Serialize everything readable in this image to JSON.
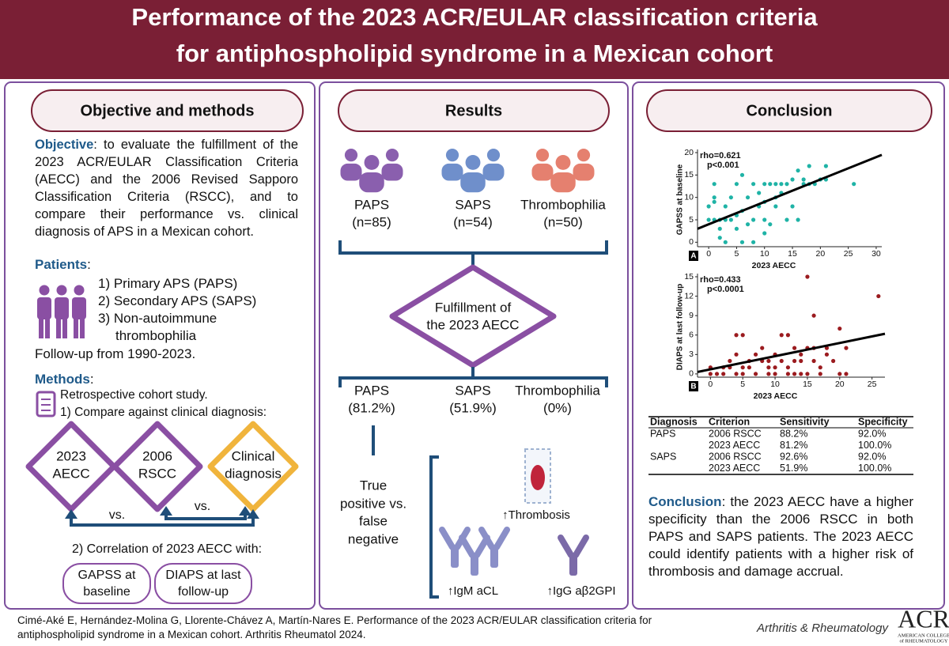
{
  "header": {
    "title": [
      "Performance of the 2023 ACR/EULAR classification criteria",
      "for antiphospholipid syndrome in a Mexican cohort"
    ]
  },
  "objective_panel": {
    "heading": "Objective and methods",
    "objective_label": "Objective",
    "objective_text": ": to evaluate the fulfillment of the 2023 ACR/EULAR Classification Criteria (AECC) and the 2006 Revised Sapporo Classification Criteria (RSCC), and to compare their performance vs. clinical diagnosis of APS in a Mexican cohort.",
    "patients_label": "Patients",
    "patients_colon": ":",
    "patients": [
      "1) Primary APS (PAPS)",
      "2) Secondary APS (SAPS)",
      "3) Non-autoimmune thrombophilia"
    ],
    "follow_up": "Follow-up from 1990-2023.",
    "methods_label": "Methods",
    "methods_colon": ":",
    "methods": [
      "Retrospective cohort study.",
      "1) Compare against clinical diagnosis:"
    ],
    "diamonds": [
      [
        "2023",
        "AECC"
      ],
      [
        "2006",
        "RSCC"
      ],
      [
        "Clinical",
        "diagnosis"
      ]
    ],
    "vs": [
      "vs.",
      "vs."
    ],
    "correlation": "2) Correlation of 2023 AECC with:",
    "scores": [
      [
        "GAPSS at",
        "baseline"
      ],
      [
        "DIAPS at last",
        "follow-up"
      ]
    ]
  },
  "results_panel": {
    "heading": "Results",
    "groups": [
      {
        "name": "PAPS",
        "n": "(n=85)"
      },
      {
        "name": "SAPS",
        "n": "(n=54)"
      },
      {
        "name": "Thrombophilia",
        "n": "(n=50)"
      }
    ],
    "decision": [
      "Fulfillment of",
      "the 2023 AECC"
    ],
    "outcomes": [
      {
        "name": "PAPS",
        "value": "(81.2%)"
      },
      {
        "name": "SAPS",
        "value": "(51.9%)"
      },
      {
        "name": "Thrombophilia",
        "value": "(0%)"
      }
    ],
    "comparison": [
      "True",
      "positive vs.",
      "false",
      "negative"
    ],
    "findings": [
      "↑Thrombosis",
      "↑IgM aCL",
      "↑IgG aβ2GPI"
    ]
  },
  "conclusion_panel": {
    "heading": "Conclusion",
    "table": {
      "header": [
        "Diagnosis",
        "Criterion",
        "Sensitivity",
        "Specificity"
      ],
      "rows": [
        [
          "PAPS",
          "2006 RSCC",
          "88.2%",
          "92.0%"
        ],
        [
          "",
          "2023 AECC",
          "81.2%",
          "100.0%"
        ],
        [
          "SAPS",
          "2006 RSCC",
          "92.6%",
          "92.0%"
        ],
        [
          "",
          "2023 AECC",
          "51.9%",
          "100.0%"
        ]
      ]
    },
    "conclusion_label": "Conclusion",
    "conclusion_text": ": the 2023 AECC have a higher specificity than the 2006 RSCC in both PAPS and SAPS patients. The 2023 AECC could identify patients with a higher risk of thrombosis and damage accrual."
  },
  "charts": [
    {
      "type": "scatter",
      "panel": "A",
      "annotations": [
        "rho=0.621",
        "p<0.001"
      ],
      "x_label": "2023 AECC",
      "y_label": "GAPSS at baseline",
      "color": "#1fb3a6",
      "xlim": [
        -2,
        31
      ],
      "ylim": [
        -1,
        20
      ],
      "xticks": [
        0,
        5,
        10,
        15,
        20,
        25,
        30
      ],
      "yticks": [
        0,
        5,
        10,
        15,
        20
      ],
      "x": [
        0,
        0,
        1,
        1,
        1,
        1,
        2,
        2,
        2,
        3,
        3,
        3,
        4,
        4,
        5,
        5,
        5,
        6,
        6,
        6,
        7,
        7,
        8,
        8,
        8,
        9,
        9,
        10,
        10,
        10,
        10,
        11,
        11,
        12,
        12,
        12,
        13,
        13,
        14,
        14,
        15,
        15,
        16,
        16,
        17,
        17,
        18,
        18,
        19,
        20,
        21,
        21,
        26
      ],
      "values": [
        5,
        8,
        5,
        13,
        10,
        9,
        3,
        1,
        5,
        0,
        5,
        8,
        5,
        10,
        3,
        6,
        13,
        0,
        7,
        15,
        4,
        10,
        0,
        5,
        13,
        8,
        11,
        2,
        5,
        9,
        13,
        4,
        13,
        8,
        10,
        13,
        13,
        11,
        5,
        13,
        8,
        14,
        5,
        16,
        14,
        13,
        17,
        13,
        13,
        14,
        14,
        17,
        13
      ],
      "fit": {
        "x": [
          -2,
          31
        ],
        "y": [
          3,
          19.5
        ]
      }
    },
    {
      "type": "scatter",
      "panel": "B",
      "annotations": [
        "rho=0.433",
        "p<0.0001"
      ],
      "x_label": "2023 AECC",
      "y_label": "DIAPS at last follow-up",
      "color": "#9b1b1f",
      "xlim": [
        -2,
        27
      ],
      "ylim": [
        -0.5,
        15
      ],
      "xticks": [
        0,
        5,
        10,
        15,
        20,
        25
      ],
      "yticks": [
        0,
        3,
        6,
        9,
        12,
        15
      ],
      "x": [
        0,
        0,
        1,
        2,
        2,
        3,
        3,
        4,
        4,
        4,
        5,
        5,
        5,
        6,
        6,
        7,
        7,
        8,
        8,
        9,
        9,
        9,
        10,
        10,
        10,
        11,
        11,
        12,
        12,
        12,
        13,
        13,
        13,
        14,
        14,
        14,
        15,
        15,
        15,
        16,
        16,
        16,
        17,
        17,
        18,
        18,
        19,
        20,
        20,
        21,
        21,
        26
      ],
      "values": [
        0,
        1,
        0,
        0,
        1,
        1,
        2,
        0,
        3,
        6,
        1,
        6,
        0,
        2,
        1,
        0,
        3,
        2,
        4,
        1,
        2,
        0,
        1,
        3,
        0,
        6,
        2,
        6,
        1,
        0,
        2,
        4,
        0,
        2,
        3,
        0,
        4,
        15,
        0,
        9,
        2,
        4,
        1,
        0,
        3,
        4,
        2,
        7,
        0,
        4,
        0,
        12
      ],
      "fit": {
        "x": [
          -2,
          27
        ],
        "y": [
          0.3,
          6.2
        ]
      }
    }
  ],
  "footer": {
    "citation": "Cimé-Aké E, Hernández-Molina G, Llorente-Chávez A, Martín-Nares E. Performance of the 2023 ACR/EULAR classification criteria for antiphospholipid syndrome in a Mexican cohort. Arthritis Rheumatol 2024.",
    "journal": "Arthritis & Rheumatology",
    "logo": "ACR",
    "logo_sub": [
      "AMERICAN COLLEGE",
      "of RHEUMATOLOGY"
    ]
  }
}
